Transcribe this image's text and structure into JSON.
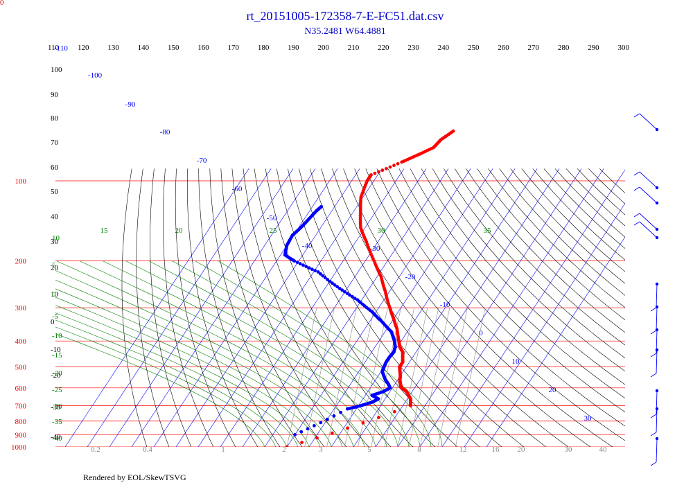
{
  "title": "rt_20151005-172358-7-E-FC51.dat.csv",
  "subtitle": "N35.2481 W64.4881",
  "footer": "Rendered by EOL/SkewTSVG",
  "corner_label": "0",
  "colors": {
    "title": "#0000cc",
    "isobar": "#ff0000",
    "isotherm": "#0000ff",
    "dry_adiabat": "#000000",
    "moist_adiabat": "#008000",
    "mixing_ratio": "#888888",
    "temperature": "#ff0000",
    "dewpoint": "#0000ff",
    "wind_barb": "#0000ff"
  },
  "chart_data": {
    "type": "scatter",
    "pressure_levels": [
      "100",
      "200",
      "300",
      "400",
      "500",
      "600",
      "700",
      "800",
      "900",
      "1000"
    ],
    "top_scale": [
      "110",
      "120",
      "130",
      "140",
      "150",
      "160",
      "170",
      "180",
      "190",
      "200",
      "210",
      "220",
      "230",
      "240",
      "250",
      "260",
      "270",
      "280",
      "290",
      "300"
    ],
    "left_scale": [
      "100",
      "90",
      "80",
      "70",
      "60",
      "50",
      "40",
      "30",
      "20",
      "10",
      "0",
      "-10",
      "-20",
      "-30",
      "-40"
    ],
    "isotherm_labels": [
      "-110",
      "-100",
      "-90",
      "-80",
      "-70",
      "-60",
      "-50",
      "-40",
      "-30",
      "-20",
      "-10",
      "0",
      "10",
      "20",
      "30"
    ],
    "moist_labels_top": [
      "15",
      "20",
      "25",
      "30",
      "35"
    ],
    "moist_labels_left": [
      "10",
      "5",
      "0",
      "-5",
      "-10",
      "-15",
      "-20",
      "-25",
      "-30",
      "-35",
      "-40"
    ],
    "mixing_ratio_labels": [
      "0.2",
      "0.4",
      "1",
      "2",
      "3",
      "5",
      "8",
      "12",
      "16",
      "20",
      "30",
      "40"
    ],
    "temperature_profile": [
      {
        "t": -30,
        "p": 1000
      },
      {
        "t": 13.5,
        "p": 700
      },
      {
        "t": 12.5,
        "p": 680
      },
      {
        "t": 11.5,
        "p": 660
      },
      {
        "t": 9.5,
        "p": 640
      },
      {
        "t": 7.5,
        "p": 620
      },
      {
        "t": 6.0,
        "p": 610
      },
      {
        "t": 4.0,
        "p": 600
      },
      {
        "t": 2.5,
        "p": 580
      },
      {
        "t": 1.0,
        "p": 560
      },
      {
        "t": 0.0,
        "p": 540
      },
      {
        "t": -1.5,
        "p": 520
      },
      {
        "t": -3.0,
        "p": 500
      },
      {
        "t": -3.0,
        "p": 480
      },
      {
        "t": -4.5,
        "p": 460
      },
      {
        "t": -6.0,
        "p": 440
      },
      {
        "t": -9.0,
        "p": 420
      },
      {
        "t": -11.0,
        "p": 400
      },
      {
        "t": -15.5,
        "p": 360
      },
      {
        "t": -20.0,
        "p": 330
      },
      {
        "t": -25.0,
        "p": 300
      },
      {
        "t": -32.0,
        "p": 260
      },
      {
        "t": -38.0,
        "p": 230
      },
      {
        "t": -46.0,
        "p": 200
      },
      {
        "t": -55.0,
        "p": 170
      },
      {
        "t": -62.0,
        "p": 150
      },
      {
        "t": -67.0,
        "p": 130
      },
      {
        "t": -71.0,
        "p": 115
      },
      {
        "t": -73.0,
        "p": 100
      },
      {
        "t": -73.0,
        "p": 95
      },
      {
        "t": -63.0,
        "p": 85
      },
      {
        "t": -58.0,
        "p": 80
      },
      {
        "t": -53.0,
        "p": 75
      },
      {
        "t": -52.0,
        "p": 70
      },
      {
        "t": -49.0,
        "p": 65
      }
    ],
    "dewpoint_profile": [
      {
        "t": -30,
        "p": 900
      },
      {
        "t": -14.0,
        "p": 720
      },
      {
        "t": -9.0,
        "p": 700
      },
      {
        "t": -5.0,
        "p": 680
      },
      {
        "t": -3.0,
        "p": 660
      },
      {
        "t": -7.0,
        "p": 640
      },
      {
        "t": -3.0,
        "p": 620
      },
      {
        "t": -1.0,
        "p": 600
      },
      {
        "t": -3.0,
        "p": 580
      },
      {
        "t": -5.5,
        "p": 560
      },
      {
        "t": -7.5,
        "p": 540
      },
      {
        "t": -9.5,
        "p": 520
      },
      {
        "t": -10.0,
        "p": 500
      },
      {
        "t": -10.5,
        "p": 480
      },
      {
        "t": -10.5,
        "p": 460
      },
      {
        "t": -10.0,
        "p": 440
      },
      {
        "t": -11.0,
        "p": 420
      },
      {
        "t": -13.0,
        "p": 400
      },
      {
        "t": -17.0,
        "p": 370
      },
      {
        "t": -24.0,
        "p": 340
      },
      {
        "t": -32.0,
        "p": 310
      },
      {
        "t": -42.0,
        "p": 280
      },
      {
        "t": -55.0,
        "p": 250
      },
      {
        "t": -68.0,
        "p": 220
      },
      {
        "t": -82.0,
        "p": 200
      },
      {
        "t": -88.0,
        "p": 190
      },
      {
        "t": -90.0,
        "p": 175
      },
      {
        "t": -90.5,
        "p": 160
      },
      {
        "t": -89.0,
        "p": 150
      },
      {
        "t": -88.0,
        "p": 140
      },
      {
        "t": -87.0,
        "p": 130
      },
      {
        "t": -86.0,
        "p": 125
      }
    ]
  }
}
